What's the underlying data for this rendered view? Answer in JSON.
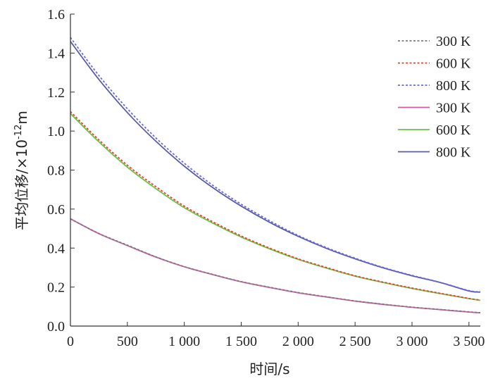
{
  "chart_data": {
    "type": "line",
    "title": "",
    "xlabel": "时间/s",
    "ylabel_main": "平均位移/×10",
    "ylabel_exp": "-12",
    "ylabel_unit": "m",
    "xlim": [
      0,
      3600
    ],
    "ylim": [
      0,
      1.6
    ],
    "xticks": [
      {
        "value": 0,
        "label": "0"
      },
      {
        "value": 500,
        "label": "500"
      },
      {
        "value": 1000,
        "label": "1 000"
      },
      {
        "value": 1500,
        "label": "1 500"
      },
      {
        "value": 2000,
        "label": "2 000"
      },
      {
        "value": 2500,
        "label": "2 500"
      },
      {
        "value": 3000,
        "label": "3 000"
      },
      {
        "value": 3500,
        "label": "3 500"
      }
    ],
    "yticks": [
      {
        "value": 0,
        "label": "0.0"
      },
      {
        "value": 0.2,
        "label": "0.2"
      },
      {
        "value": 0.4,
        "label": "0.4"
      },
      {
        "value": 0.6,
        "label": "0.6"
      },
      {
        "value": 0.8,
        "label": "0.8"
      },
      {
        "value": 1.0,
        "label": "1.0"
      },
      {
        "value": 1.2,
        "label": "1.2"
      },
      {
        "value": 1.4,
        "label": "1.4"
      },
      {
        "value": 1.6,
        "label": "1.6"
      }
    ],
    "grid": false,
    "legend_position": "top-right",
    "x": [
      0,
      250,
      500,
      750,
      1000,
      1250,
      1500,
      1750,
      2000,
      2250,
      2500,
      2750,
      3000,
      3250,
      3500,
      3600
    ],
    "series": [
      {
        "name": "300 K",
        "style": "dashed",
        "color": "#7a7a7a",
        "values": [
          0.55,
          0.475,
          0.415,
          0.355,
          0.305,
          0.265,
          0.228,
          0.199,
          0.172,
          0.15,
          0.129,
          0.112,
          0.097,
          0.085,
          0.073,
          0.069
        ]
      },
      {
        "name": "600 K",
        "style": "dashed",
        "color": "#e8402a",
        "values": [
          1.1,
          0.955,
          0.825,
          0.715,
          0.615,
          0.535,
          0.462,
          0.4,
          0.345,
          0.3,
          0.258,
          0.225,
          0.195,
          0.168,
          0.142,
          0.133
        ]
      },
      {
        "name": "800 K",
        "style": "dashed",
        "color": "#6a6ad8",
        "values": [
          1.48,
          1.285,
          1.115,
          0.965,
          0.835,
          0.722,
          0.625,
          0.54,
          0.465,
          0.402,
          0.348,
          0.3,
          0.26,
          0.224,
          0.182,
          0.176
        ]
      },
      {
        "name": "300 K",
        "style": "solid",
        "color": "#cf5aa8",
        "values": [
          0.55,
          0.474,
          0.413,
          0.354,
          0.304,
          0.264,
          0.227,
          0.198,
          0.171,
          0.149,
          0.128,
          0.111,
          0.096,
          0.084,
          0.072,
          0.068
        ]
      },
      {
        "name": "600 K",
        "style": "solid",
        "color": "#6cc04a",
        "values": [
          1.09,
          0.945,
          0.815,
          0.705,
          0.607,
          0.528,
          0.457,
          0.396,
          0.342,
          0.297,
          0.256,
          0.223,
          0.193,
          0.166,
          0.141,
          0.132
        ]
      },
      {
        "name": "800 K",
        "style": "solid",
        "color": "#5b5ba8",
        "values": [
          1.46,
          1.265,
          1.095,
          0.948,
          0.82,
          0.71,
          0.615,
          0.532,
          0.46,
          0.398,
          0.345,
          0.298,
          0.258,
          0.223,
          0.18,
          0.174
        ]
      }
    ]
  }
}
